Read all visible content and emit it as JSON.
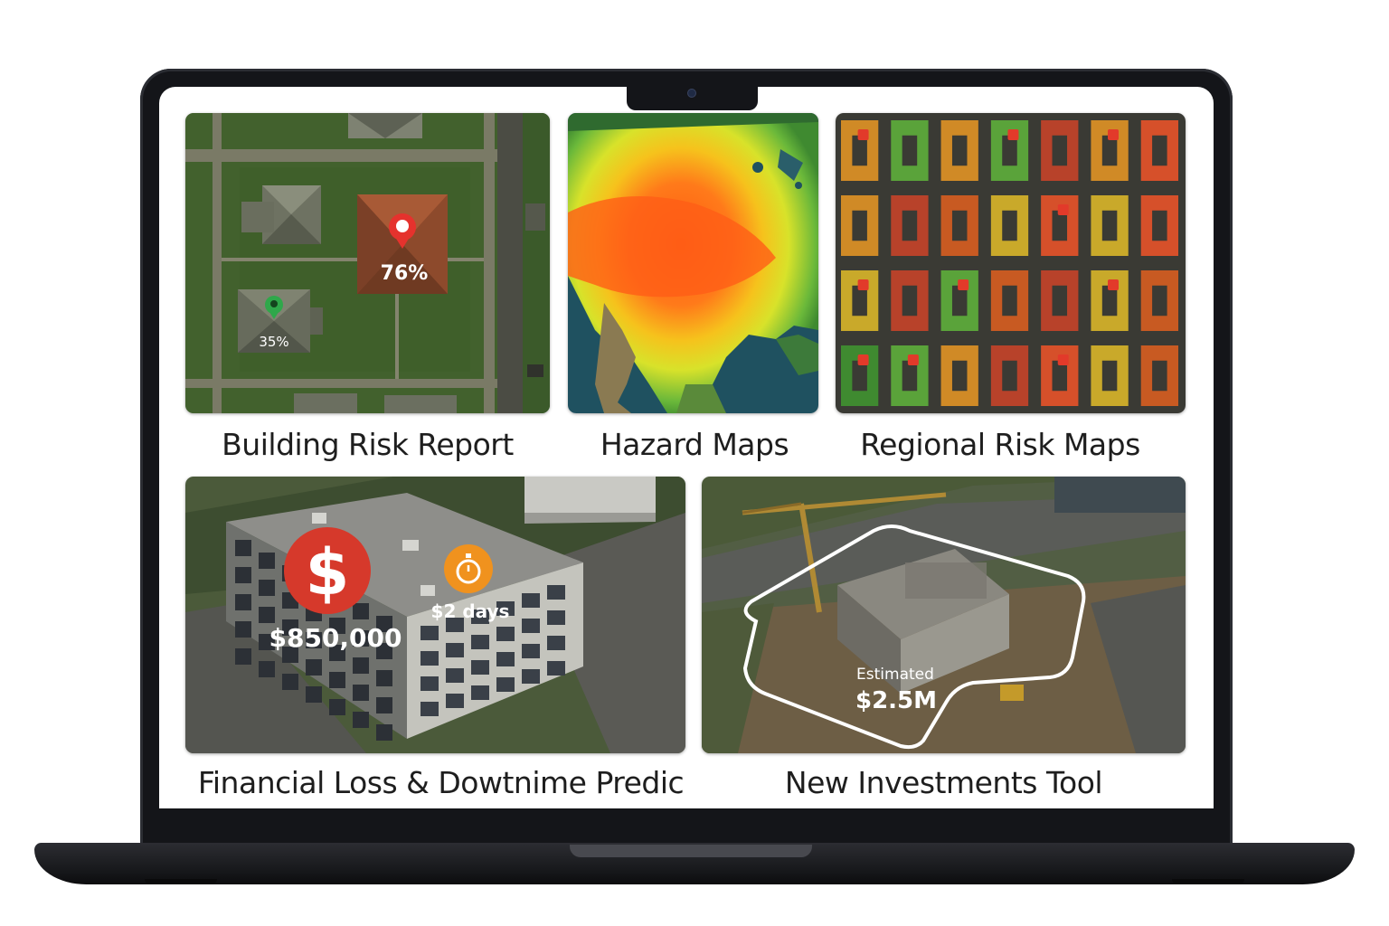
{
  "tiles": [
    {
      "id": "building-risk",
      "title": "Building Risk Report",
      "markers": [
        {
          "label": "76%",
          "status": "high-risk",
          "color": "#e5322d"
        },
        {
          "label": "35%",
          "status": "low-risk",
          "color": "#2fa84a"
        }
      ]
    },
    {
      "id": "hazard-maps",
      "title": "Hazard Maps"
    },
    {
      "id": "regional-risk",
      "title": "Regional Risk Maps"
    },
    {
      "id": "financial-loss",
      "title": "Financial Loss & Dowtnime Predic",
      "loss_amount": "$850,000",
      "downtime": "$2 days",
      "icons": [
        "dollar-icon",
        "stopwatch-icon"
      ]
    },
    {
      "id": "new-investments",
      "title": "New Investments Tool",
      "estimate_label": "Estimated",
      "estimate_value": "$2.5M"
    }
  ],
  "colors": {
    "risk_red": "#d6392b",
    "timer_orange": "#f0921e",
    "safe_green": "#2fa84a"
  }
}
